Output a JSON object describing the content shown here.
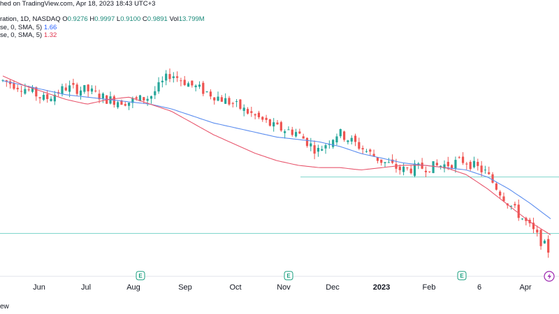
{
  "header": {
    "line1": "hed on TradingView.com, Apr 18, 2023 18:43 UTC+3",
    "line2_prefix": "ration, 1D, NASDAQ",
    "ohlc": {
      "O": "0.9276",
      "H": "0.9997",
      "L": "0.9100",
      "C": "0.9891",
      "Vol": "13.799M"
    },
    "ma1_label": "se, 0, SMA, 5)",
    "ma1_value": "1.66",
    "ma2_label": "se, 0, SMA, 5)",
    "ma2_value": "1.32"
  },
  "footer_text": "ew",
  "colors": {
    "up": "#26a69a",
    "down": "#ef5350",
    "ma_blue": "#5b8def",
    "ma_red": "#e8576e",
    "hline": "#7fd6cc"
  },
  "chart_data": {
    "type": "candlestick",
    "x_axis_labels": [
      "Jun",
      "Jul",
      "Aug",
      "Sep",
      "Oct",
      "Nov",
      "Dec",
      "2023",
      "Feb",
      "6",
      "Apr"
    ],
    "earnings_markers": [
      "Aug",
      "Nov",
      "Feb"
    ],
    "earnings_icon_text": "E",
    "series": [
      {
        "name": "SMA blue",
        "values": [
          4.6,
          4.5,
          4.4,
          4.3,
          4.25,
          4.2,
          4.15,
          4.1,
          4.0,
          3.85,
          3.7,
          3.6,
          3.5,
          3.4,
          3.35,
          3.3,
          3.2,
          3.05,
          2.95,
          2.85,
          2.8,
          2.75,
          2.7,
          2.55,
          2.3,
          2.0,
          1.66
        ]
      },
      {
        "name": "SMA red",
        "values": [
          4.7,
          4.5,
          4.35,
          4.2,
          4.1,
          4.2,
          4.25,
          4.1,
          3.95,
          3.7,
          3.45,
          3.25,
          3.05,
          2.9,
          2.8,
          2.75,
          2.75,
          2.7,
          2.75,
          2.8,
          2.8,
          2.75,
          2.6,
          2.3,
          1.95,
          1.6,
          1.32
        ]
      },
      {
        "name": "price",
        "values": [
          4.6,
          4.45,
          4.2,
          4.45,
          4.4,
          4.2,
          4.15,
          4.25,
          4.75,
          4.5,
          4.3,
          4.1,
          3.85,
          3.6,
          3.5,
          3.1,
          3.5,
          3.2,
          2.9,
          2.7,
          2.75,
          2.8,
          2.9,
          2.65,
          2.05,
          1.55,
          0.99
        ]
      }
    ],
    "horizontal_lines": [
      2.55,
      1.35
    ],
    "ylim": [
      0.6,
      5.5
    ]
  }
}
